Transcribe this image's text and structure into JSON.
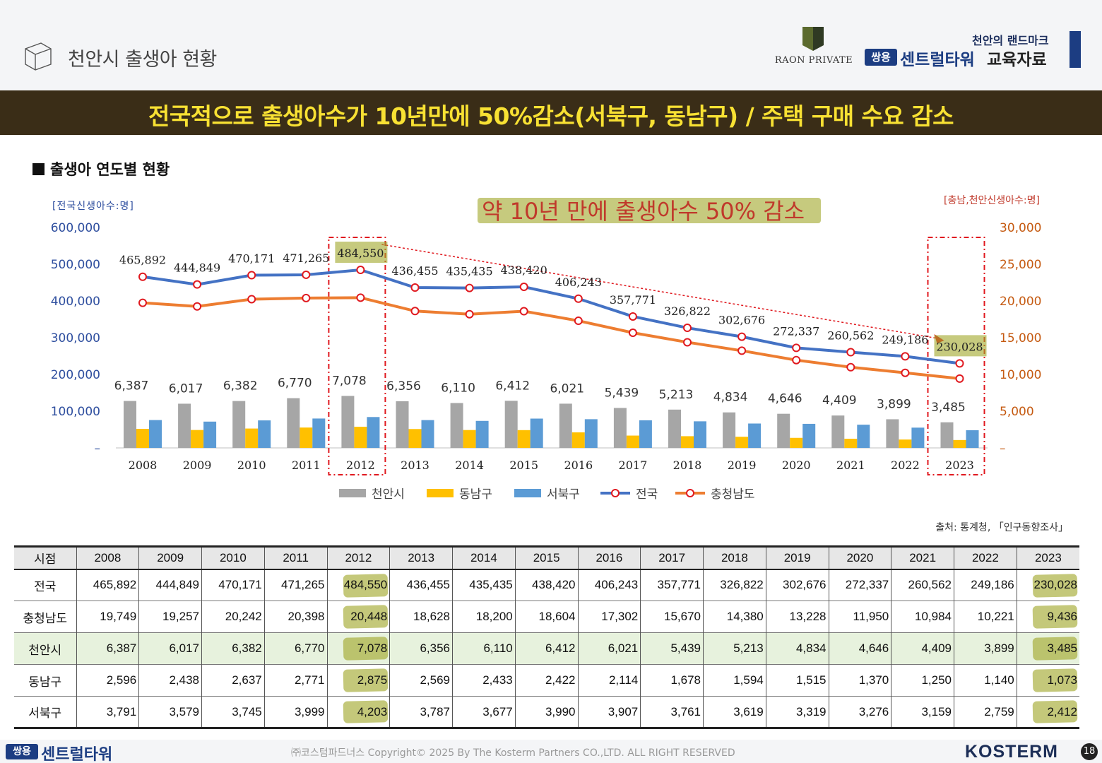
{
  "header": {
    "page_title": "천안시 출생아 현황",
    "raon_logo_text": "RAON PRIVATE",
    "brand_tagline": "천안의 랜드마크",
    "brand_badge": "쌍용",
    "brand_name": "센트럴타워",
    "brand_suffix": "교육자료"
  },
  "banner": {
    "text": "전국적으로 출생아수가 10년만에 50%감소(서북구, 동남구) / 주택 구매 수요 감소"
  },
  "section": {
    "title": "출생아 연도별 현황"
  },
  "chart_data": {
    "type": "bar",
    "title": "",
    "categories": [
      "2008",
      "2009",
      "2010",
      "2011",
      "2012",
      "2013",
      "2014",
      "2015",
      "2016",
      "2017",
      "2018",
      "2019",
      "2020",
      "2021",
      "2022",
      "2023"
    ],
    "left_axis_label": "[전국신생아수:명]",
    "right_axis_label": "[충남,천안신생아수:명]",
    "left_ylim": [
      0,
      600000
    ],
    "right_ylim": [
      0,
      30000
    ],
    "left_ticks": [
      "600,000",
      "500,000",
      "400,000",
      "300,000",
      "200,000",
      "100,000",
      "–"
    ],
    "right_ticks": [
      "30,000",
      "25,000",
      "20,000",
      "15,000",
      "10,000",
      "5,000",
      "–"
    ],
    "annotation": "약 10년 만에 출생아수 50% 감소",
    "highlighted_years": [
      "2012",
      "2023"
    ],
    "legend_position": "bottom",
    "series": [
      {
        "name": "천안시",
        "kind": "bar",
        "axis": "right",
        "color": "#a6a6a6",
        "values": [
          6387,
          6017,
          6382,
          6770,
          7078,
          6356,
          6110,
          6412,
          6021,
          5439,
          5213,
          4834,
          4646,
          4409,
          3899,
          3485
        ],
        "labels": [
          "6,387",
          "6,017",
          "6,382",
          "6,770",
          "7,078",
          "6,356",
          "6,110",
          "6,412",
          "6,021",
          "5,439",
          "5,213",
          "4,834",
          "4,646",
          "4,409",
          "3,899",
          "3,485"
        ]
      },
      {
        "name": "동남구",
        "kind": "bar",
        "axis": "right",
        "color": "#ffc000",
        "values": [
          2596,
          2438,
          2637,
          2771,
          2875,
          2569,
          2433,
          2422,
          2114,
          1678,
          1594,
          1515,
          1370,
          1250,
          1140,
          1073
        ]
      },
      {
        "name": "서북구",
        "kind": "bar",
        "axis": "right",
        "color": "#5b9bd5",
        "values": [
          3791,
          3579,
          3745,
          3999,
          4203,
          3787,
          3677,
          3990,
          3907,
          3761,
          3619,
          3319,
          3276,
          3159,
          2759,
          2412
        ]
      },
      {
        "name": "전국",
        "kind": "line",
        "axis": "left",
        "color": "#4472c4",
        "values": [
          465892,
          444849,
          470171,
          471265,
          484550,
          436455,
          435435,
          438420,
          406243,
          357771,
          326822,
          302676,
          272337,
          260562,
          249186,
          230028
        ],
        "labels": [
          "465,892",
          "444,849",
          "470,171",
          "471,265",
          "484,550",
          "436,455",
          "435,435",
          "438,420",
          "406,243",
          "357,771",
          "326,822",
          "302,676",
          "272,337",
          "260,562",
          "249,186",
          "230,028"
        ]
      },
      {
        "name": "충청남도",
        "kind": "line",
        "axis": "right",
        "color": "#ed7d31",
        "values": [
          19749,
          19257,
          20242,
          20398,
          20448,
          18628,
          18200,
          18604,
          17302,
          15670,
          14380,
          13228,
          11950,
          10984,
          10221,
          9436
        ]
      }
    ]
  },
  "source": "출처: 통계청, 「인구동향조사」",
  "table": {
    "header_label": "시점",
    "years": [
      "2008",
      "2009",
      "2010",
      "2011",
      "2012",
      "2013",
      "2014",
      "2015",
      "2016",
      "2017",
      "2018",
      "2019",
      "2020",
      "2021",
      "2022",
      "2023"
    ],
    "rows": [
      {
        "label": "전국",
        "values": [
          "465,892",
          "444,849",
          "470,171",
          "471,265",
          "484,550",
          "436,455",
          "435,435",
          "438,420",
          "406,243",
          "357,771",
          "326,822",
          "302,676",
          "272,337",
          "260,562",
          "249,186",
          "230,028"
        ]
      },
      {
        "label": "충청남도",
        "values": [
          "19,749",
          "19,257",
          "20,242",
          "20,398",
          "20,448",
          "18,628",
          "18,200",
          "18,604",
          "17,302",
          "15,670",
          "14,380",
          "13,228",
          "11,950",
          "10,984",
          "10,221",
          "9,436"
        ]
      },
      {
        "label": "천안시",
        "values": [
          "6,387",
          "6,017",
          "6,382",
          "6,770",
          "7,078",
          "6,356",
          "6,110",
          "6,412",
          "6,021",
          "5,439",
          "5,213",
          "4,834",
          "4,646",
          "4,409",
          "3,899",
          "3,485"
        ]
      },
      {
        "label": "동남구",
        "values": [
          "2,596",
          "2,438",
          "2,637",
          "2,771",
          "2,875",
          "2,569",
          "2,433",
          "2,422",
          "2,114",
          "1,678",
          "1,594",
          "1,515",
          "1,370",
          "1,250",
          "1,140",
          "1,073"
        ]
      },
      {
        "label": "서북구",
        "values": [
          "3,791",
          "3,579",
          "3,745",
          "3,999",
          "4,203",
          "3,787",
          "3,677",
          "3,990",
          "3,907",
          "3,761",
          "3,619",
          "3,319",
          "3,276",
          "3,159",
          "2,759",
          "2,412"
        ]
      }
    ],
    "highlighted_row": "천안시"
  },
  "footer": {
    "badge": "쌍용",
    "brand": "센트럴타워",
    "copyright": "㈜코스텀파드너스 Copyright© 2025 By The Kosterm Partners CO.,LTD. ALL RIGHT RESERVED",
    "company_logo": "KOSTERM",
    "page_number": "18"
  },
  "colors": {
    "banner_bg": "#3a2d17",
    "banner_text": "#f8e133",
    "brand_blue": "#1c3d82",
    "highlight": "#a0a728",
    "dashed_box": "#e0191f"
  },
  "icons": [
    "cube-icon",
    "raon-shield-icon"
  ]
}
